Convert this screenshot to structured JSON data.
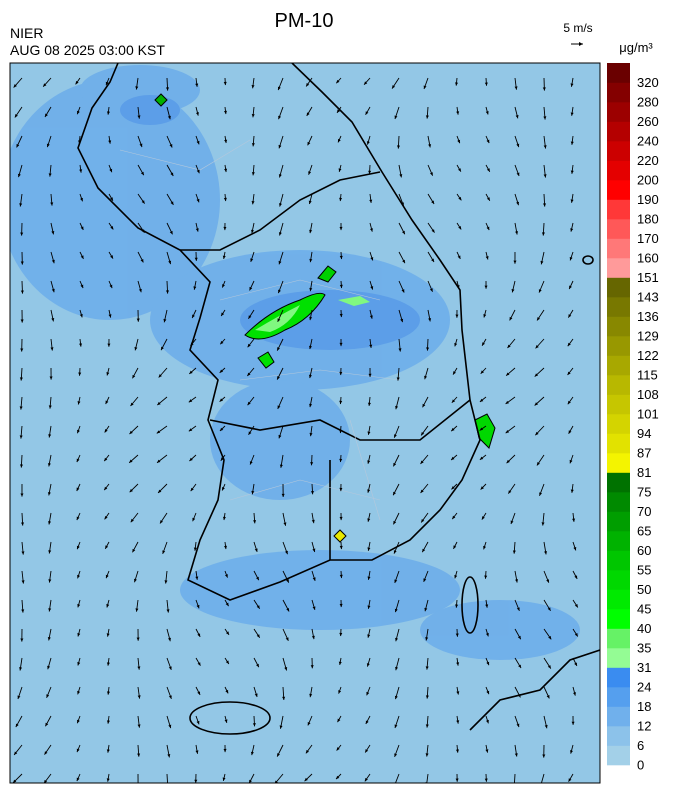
{
  "header": {
    "title": "PM-10",
    "source": "NIER",
    "time": "AUG 08 2025 03:00 KST"
  },
  "wind_scale": {
    "label": "5 m/s"
  },
  "legend": {
    "unit": "μg/m³",
    "levels": [
      0,
      6,
      12,
      18,
      24,
      31,
      35,
      40,
      45,
      50,
      55,
      60,
      65,
      70,
      75,
      81,
      87,
      94,
      101,
      108,
      115,
      122,
      129,
      136,
      143,
      151,
      160,
      170,
      180,
      190,
      200,
      220,
      240,
      260,
      280,
      320
    ],
    "colors": [
      "#a3d0e8",
      "#8cc2ea",
      "#70b0ec",
      "#559fee",
      "#3a8cf0",
      "#94fc94",
      "#66f266",
      "#00ff00",
      "#00ea00",
      "#00d800",
      "#00c600",
      "#00b200",
      "#009e00",
      "#008a00",
      "#007200",
      "#f4f400",
      "#e2e200",
      "#d4d400",
      "#c6c600",
      "#b8b800",
      "#a8a800",
      "#989800",
      "#888800",
      "#787800",
      "#666600",
      "#ff9a9a",
      "#ff7878",
      "#ff5858",
      "#ff3838",
      "#ff0000",
      "#e40000",
      "#cc0000",
      "#b40000",
      "#9c0000",
      "#840000",
      "#6a0000"
    ]
  }
}
